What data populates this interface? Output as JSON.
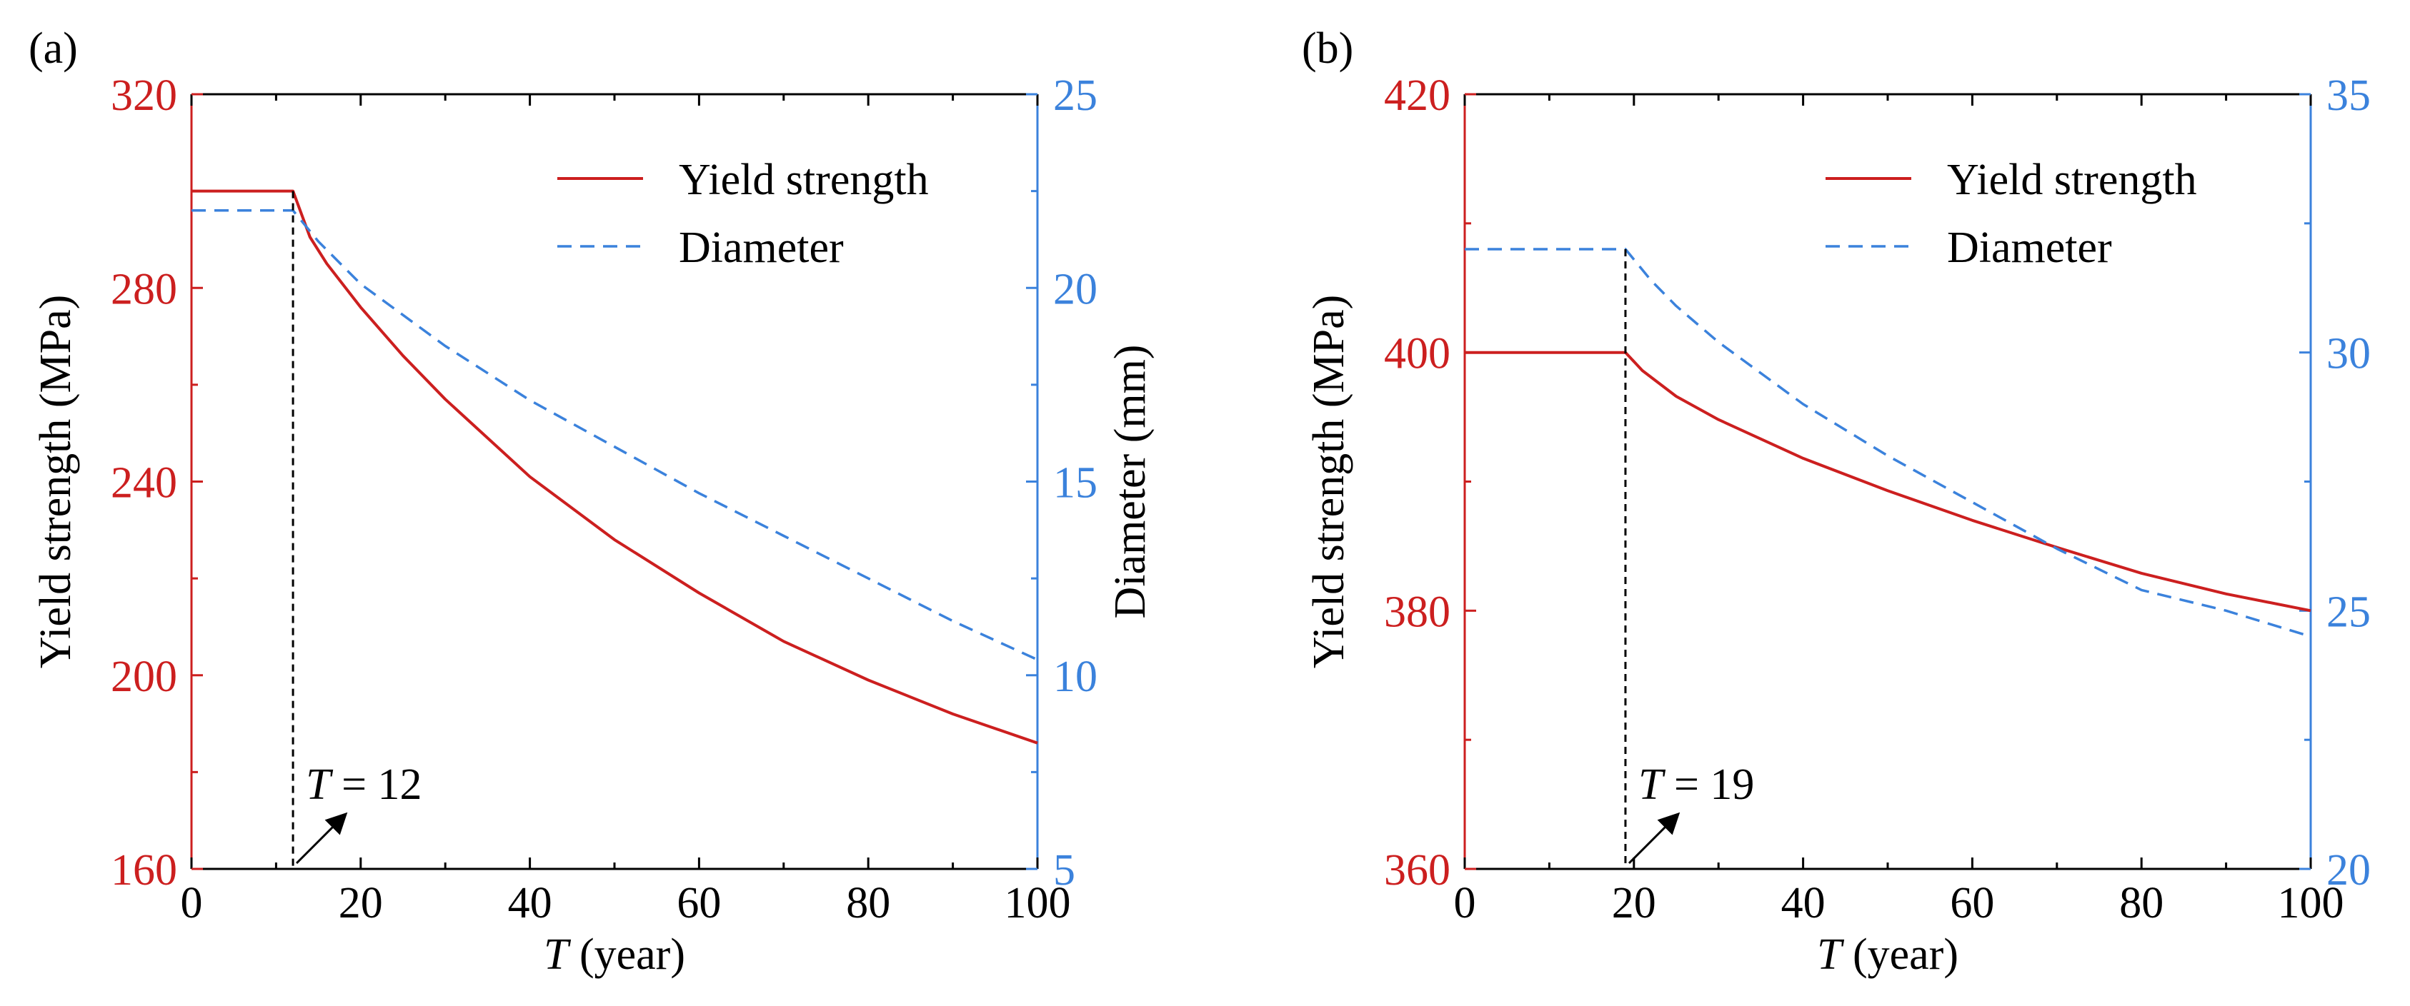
{
  "chart_data": [
    {
      "panel_label": "(a)",
      "type": "line",
      "xlabel_italic": "T",
      "xlabel_rest": " (year)",
      "ylabel_left": "Yield strength (MPa)",
      "ylabel_right": "Diameter (mm)",
      "xlim": [
        0,
        100
      ],
      "ylim_left": [
        160,
        320
      ],
      "ylim_right": [
        5,
        25
      ],
      "x_ticks": [
        "0",
        "20",
        "40",
        "60",
        "80",
        "100"
      ],
      "y_left_ticks": [
        "160",
        "200",
        "240",
        "280",
        "320"
      ],
      "y_right_ticks": [
        "5",
        "10",
        "15",
        "20",
        "25"
      ],
      "legend_position": "top-right",
      "series": [
        {
          "name": "Yield strength",
          "axis": "left",
          "style": "solid",
          "color": "#cc1f1f",
          "x": [
            0,
            12,
            14,
            16,
            20,
            25,
            30,
            40,
            50,
            60,
            70,
            80,
            90,
            100
          ],
          "y": [
            300,
            300,
            290.5,
            285,
            276,
            266,
            257,
            241,
            228,
            217,
            207,
            199,
            192,
            186
          ]
        },
        {
          "name": "Diameter",
          "axis": "right",
          "style": "dashed",
          "color": "#3b82dc",
          "x": [
            0,
            12,
            15,
            20,
            30,
            40,
            50,
            60,
            70,
            80,
            90,
            100
          ],
          "y": [
            22,
            22,
            21.2,
            20.1,
            18.5,
            17.1,
            15.9,
            14.7,
            13.6,
            12.5,
            11.4,
            10.4
          ]
        }
      ],
      "annotation": {
        "text_italic": "T",
        "text_rest": " = 12",
        "x": 12
      }
    },
    {
      "panel_label": "(b)",
      "type": "line",
      "xlabel_italic": "T",
      "xlabel_rest": " (year)",
      "ylabel_left": "Yield strength (MPa)",
      "ylabel_right": "",
      "xlim": [
        0,
        100
      ],
      "ylim_left": [
        360,
        420
      ],
      "ylim_right": [
        20,
        35
      ],
      "x_ticks": [
        "0",
        "20",
        "40",
        "60",
        "80",
        "100"
      ],
      "y_left_ticks": [
        "360",
        "380",
        "400",
        "420"
      ],
      "y_right_ticks": [
        "20",
        "25",
        "30",
        "35"
      ],
      "legend_position": "top-right",
      "series": [
        {
          "name": "Yield strength",
          "axis": "left",
          "style": "solid",
          "color": "#cc1f1f",
          "x": [
            0,
            19,
            21,
            25,
            30,
            40,
            50,
            60,
            70,
            80,
            90,
            100
          ],
          "y": [
            400,
            400,
            398.6,
            396.6,
            394.8,
            391.8,
            389.3,
            387,
            384.9,
            382.9,
            381.3,
            380
          ]
        },
        {
          "name": "Diameter",
          "axis": "right",
          "style": "dashed",
          "color": "#3b82dc",
          "x": [
            0,
            19,
            22,
            25,
            30,
            40,
            50,
            60,
            70,
            80,
            90,
            100
          ],
          "y": [
            32,
            32,
            31.4,
            30.9,
            30.2,
            29,
            28,
            27.1,
            26.2,
            25.4,
            25,
            24.5
          ]
        }
      ],
      "annotation": {
        "text_italic": "T",
        "text_rest": " = 19",
        "x": 19
      }
    }
  ]
}
